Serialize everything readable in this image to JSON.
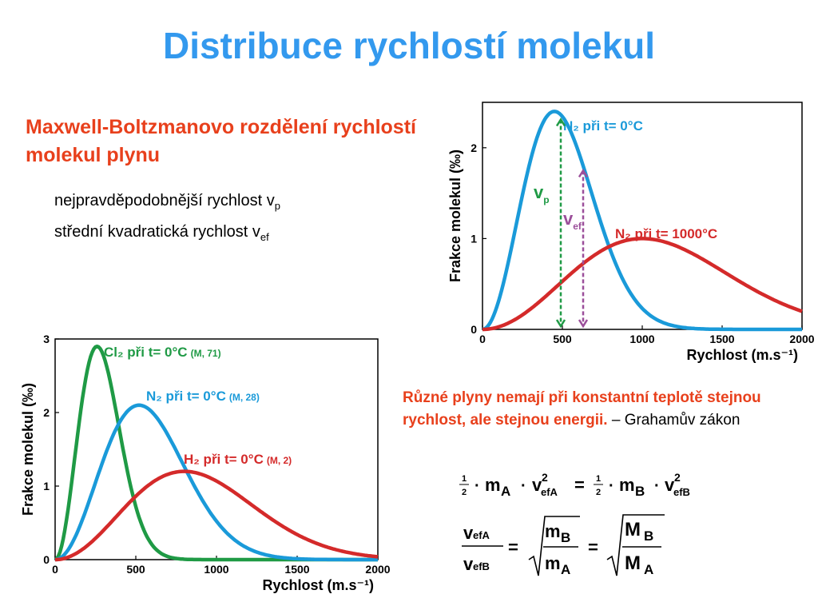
{
  "slide": {
    "title": "Distribuce rychlostí molekul",
    "heading": "Maxwell-Boltzmanovo rozdělení rychlostí molekul plynu",
    "bullets": [
      {
        "text": "nejpravděpodobnější rychlost v",
        "sub": "p"
      },
      {
        "text": "střední kvadratická rychlost v",
        "sub": "ef"
      }
    ],
    "note_bold": "Různé plyny nemají při konstantní teplotě stejnou rychlost, ale stejnou energii.",
    "note_plain": " – Grahamův zákon"
  },
  "colors": {
    "title": "#3399ee",
    "heading": "#e8401c",
    "blue_curve": "#1a9ad9",
    "red_curve": "#d42a2a",
    "green_curve": "#1f9a45",
    "vp_arrow": "#1f9a45",
    "vef_arrow": "#9b4f9a"
  },
  "formulas": {
    "half": "1",
    "two": "2",
    "dot": "·",
    "eq": "=",
    "mA": "m",
    "mA_sub": "A",
    "mB": "m",
    "mB_sub": "B",
    "v": "v",
    "sq": "2",
    "efA": "efA",
    "efB": "efB",
    "MA": "M",
    "MB": "M",
    "A": "A",
    "B": "B"
  },
  "chart_data": [
    {
      "type": "line",
      "ylabel": "Frakce molekul (‰)",
      "xlabel": "Rychlost (m.s⁻¹)",
      "xlim": [
        0,
        2000
      ],
      "ylim": [
        0,
        2.5
      ],
      "xticks": [
        "0",
        "500",
        "1000",
        "1500",
        "2000"
      ],
      "yticks": [
        "0",
        "1",
        "2"
      ],
      "series": [
        {
          "name": "N₂ při t= 0°C",
          "peak_x": 450,
          "peak_y": 2.4
        },
        {
          "name": "N₂ při t= 1000°C",
          "peak_x": 1000,
          "peak_y": 1.0
        }
      ],
      "annotations": [
        {
          "label": "v",
          "sub": "p",
          "x": 490
        },
        {
          "label": "v",
          "sub": "ef",
          "x": 630
        }
      ]
    },
    {
      "type": "line",
      "ylabel": "Frakce molekul (‰)",
      "xlabel": "Rychlost (m.s⁻¹)",
      "xlim": [
        0,
        2000
      ],
      "ylim": [
        0,
        3
      ],
      "xticks": [
        "0",
        "500",
        "1000",
        "1500",
        "2000"
      ],
      "yticks": [
        "0",
        "1",
        "2",
        "3"
      ],
      "series": [
        {
          "name": "Cl₂ při t= 0°C",
          "mass": "(M, 71)",
          "peak_x": 260,
          "peak_y": 2.9
        },
        {
          "name": "N₂ při t= 0°C",
          "mass": "(M, 28)",
          "peak_x": 520,
          "peak_y": 2.1
        },
        {
          "name": "H₂ při t= 0°C",
          "mass": "(M, 2)",
          "peak_x": 800,
          "peak_y": 1.2
        }
      ]
    }
  ]
}
